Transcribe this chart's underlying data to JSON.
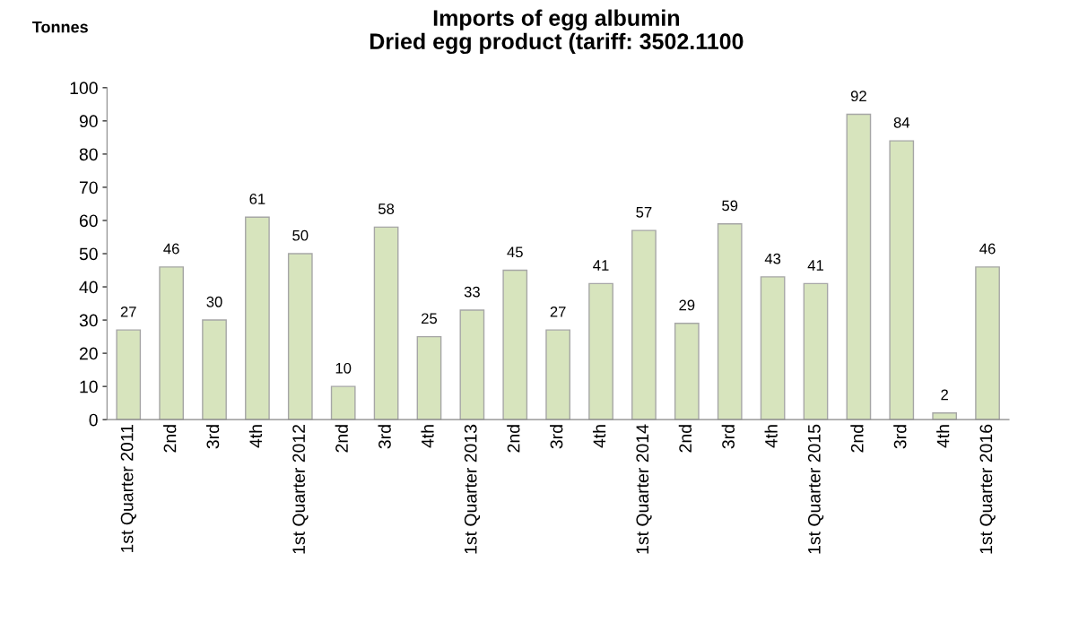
{
  "chart_data": {
    "type": "bar",
    "title": "Imports of egg albumin\nDried egg product (tariff: 3502.1100",
    "ylabel": "Tonnes",
    "categories": [
      "1st Quarter 2011",
      "2nd",
      "3rd",
      "4th",
      "1st Quarter 2012",
      "2nd",
      "3rd",
      "4th",
      "1st Quarter 2013",
      "2nd",
      "3rd",
      "4th",
      "1st Quarter 2014",
      "2nd",
      "3rd",
      "4th",
      "1st Quarter 2015",
      "2nd",
      "3rd",
      "4th",
      "1st Quarter 2016"
    ],
    "values": [
      27,
      46,
      30,
      61,
      50,
      10,
      58,
      25,
      33,
      45,
      27,
      41,
      57,
      29,
      59,
      43,
      41,
      92,
      84,
      2,
      46
    ],
    "color": "#d7e4bd",
    "ylim": [
      0,
      100
    ],
    "yticks": [
      0,
      10,
      20,
      30,
      40,
      50,
      60,
      70,
      80,
      90,
      100
    ],
    "data_labels": true,
    "grid": false,
    "legend": false
  }
}
